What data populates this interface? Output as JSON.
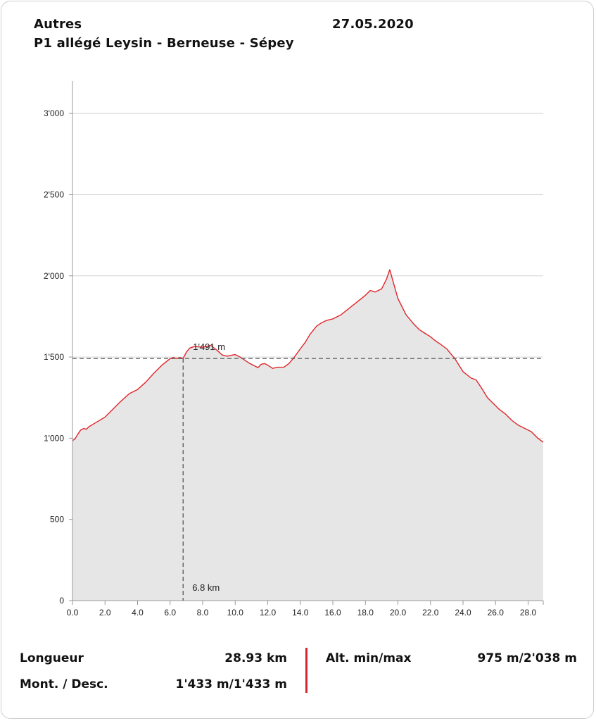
{
  "header": {
    "category": "Autres",
    "date": "27.05.2020",
    "route": "P1 allégé Leysin - Berneuse - Sépey"
  },
  "chart_data": {
    "type": "area",
    "title": "",
    "xlabel": "",
    "ylabel": "",
    "xlim": [
      0,
      28.93
    ],
    "ylim": [
      0,
      3200
    ],
    "x_ticks": [
      0,
      2,
      4,
      6,
      8,
      10,
      12,
      14,
      16,
      18,
      20,
      22,
      24,
      26,
      28
    ],
    "x_tick_labels": [
      "0.0",
      "2.0",
      "4.0",
      "6.0",
      "8.0",
      "10.0",
      "12.0",
      "14.0",
      "16.0",
      "18.0",
      "20.0",
      "22.0",
      "24.0",
      "26.0",
      "28.0"
    ],
    "y_ticks": [
      0,
      500,
      1000,
      1500,
      2000,
      2500,
      3000
    ],
    "y_tick_labels": [
      "0",
      "500",
      "1'000",
      "1'500",
      "2'000",
      "2'500",
      "3'000"
    ],
    "grid": "horizontal",
    "colors": {
      "line": "#e0262b",
      "fill": "#e6e6e6",
      "grid": "#d4d4d4",
      "marker": "#555555"
    },
    "marker": {
      "x": 6.8,
      "y": 1491,
      "x_label": "6.8 km",
      "y_label": "1'491 m"
    },
    "series": [
      {
        "x": [
          0,
          0.15,
          0.3,
          0.5,
          0.7,
          0.85,
          1.0,
          1.5,
          2.0,
          2.5,
          3.0,
          3.5,
          4.0,
          4.5,
          5.0,
          5.5,
          6.0,
          6.2,
          6.4,
          6.6,
          6.8,
          7.0,
          7.2,
          7.5,
          8.0,
          8.5,
          8.9,
          9.2,
          9.5,
          9.7,
          10.0,
          10.3,
          10.6,
          10.9,
          11.2,
          11.4,
          11.6,
          11.8,
          12.0,
          12.3,
          12.6,
          13.0,
          13.3,
          13.6,
          14.0,
          14.3,
          14.6,
          15.0,
          15.3,
          15.6,
          16.0,
          16.5,
          17.0,
          17.5,
          18.0,
          18.3,
          18.6,
          19.0,
          19.3,
          19.5,
          19.8,
          20.0,
          20.5,
          21.0,
          21.3,
          21.6,
          22.0,
          22.3,
          22.6,
          23.0,
          23.5,
          24.0,
          24.5,
          24.8,
          25.2,
          25.5,
          25.8,
          26.2,
          26.6,
          27.0,
          27.4,
          27.8,
          28.2,
          28.6,
          28.93
        ],
        "y": [
          985,
          995,
          1020,
          1050,
          1060,
          1055,
          1070,
          1100,
          1130,
          1180,
          1230,
          1275,
          1300,
          1345,
          1400,
          1450,
          1490,
          1497,
          1490,
          1497,
          1491,
          1530,
          1555,
          1565,
          1560,
          1572,
          1540,
          1513,
          1505,
          1510,
          1515,
          1500,
          1480,
          1460,
          1445,
          1435,
          1455,
          1460,
          1450,
          1430,
          1437,
          1438,
          1460,
          1495,
          1550,
          1590,
          1640,
          1690,
          1710,
          1725,
          1735,
          1760,
          1800,
          1840,
          1880,
          1910,
          1900,
          1920,
          1980,
          2038,
          1930,
          1860,
          1760,
          1700,
          1670,
          1650,
          1625,
          1600,
          1580,
          1550,
          1490,
          1410,
          1370,
          1360,
          1300,
          1250,
          1220,
          1180,
          1150,
          1110,
          1080,
          1060,
          1040,
          1000,
          975
        ]
      }
    ]
  },
  "stats": {
    "length_label": "Longueur",
    "length_value": "28.93 km",
    "ascent_label": "Mont. / Desc.",
    "ascent_value": "1'433 m/1'433 m",
    "alt_label": "Alt. min/max",
    "alt_value": "975 m/2'038 m"
  }
}
